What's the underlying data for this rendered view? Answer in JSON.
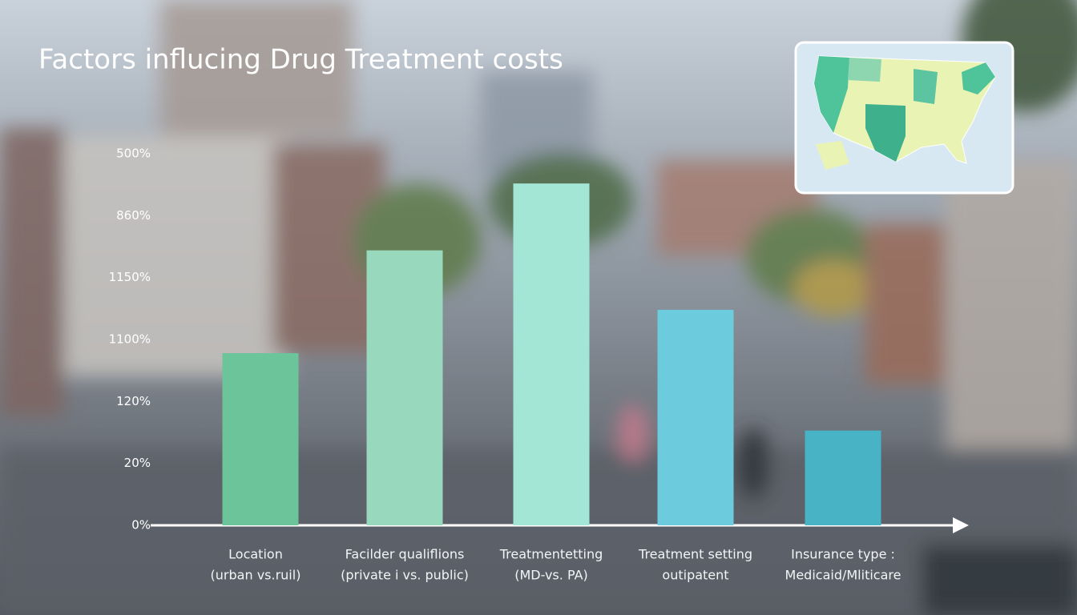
{
  "chart_data": {
    "type": "bar",
    "title": "Factors influcing Drug Treatment costs",
    "categories": [
      [
        "Location",
        "(urban vs.ruil)"
      ],
      [
        "Facilder qualiflions",
        "(private i vs. public)"
      ],
      [
        "Treatmentetting",
        "(MD-vs. PA)"
      ],
      [
        "Treatment setting",
        "outipatent"
      ],
      [
        "Insurance type :",
        "Medicaid/Mliticare"
      ]
    ],
    "values": [
      2.78,
      4.44,
      5.52,
      3.48,
      1.53
    ],
    "colors": [
      "#6cc49a",
      "#98d8bc",
      "#a3e6d6",
      "#6ccbdc",
      "#47b3c4"
    ],
    "ylim": [
      0,
      6
    ],
    "yticks": [
      {
        "value": 0,
        "label": "0%"
      },
      {
        "value": 1,
        "label": "20%"
      },
      {
        "value": 2,
        "label": "120%"
      },
      {
        "value": 3,
        "label": "1100%"
      },
      {
        "value": 4,
        "label": "1150%"
      },
      {
        "value": 5,
        "label": "860%"
      },
      {
        "value": 6,
        "label": "500%"
      }
    ],
    "grid": false
  }
}
